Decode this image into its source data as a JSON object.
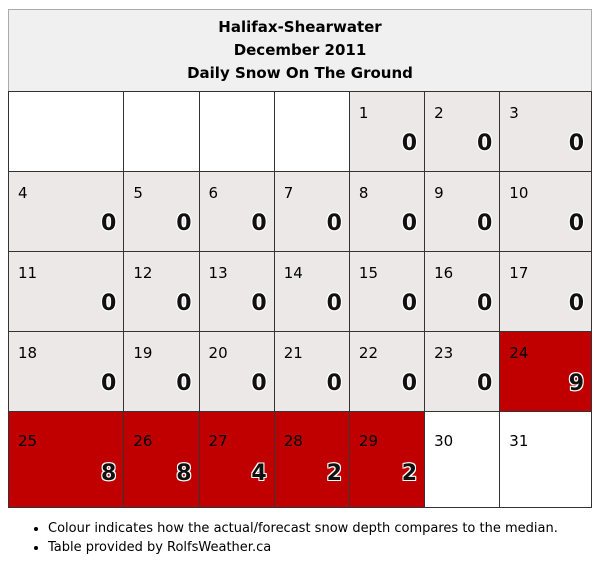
{
  "header": {
    "station": "Halifax-Shearwater",
    "period": "December 2011",
    "metric": "Daily Snow On The Ground"
  },
  "colors": {
    "normal": "#ede8e8",
    "above_median": "#c00000",
    "empty": "#ffffff"
  },
  "weeks": [
    [
      null,
      null,
      null,
      null,
      {
        "day": "1",
        "value": "0",
        "status": "normal"
      },
      {
        "day": "2",
        "value": "0",
        "status": "normal"
      },
      {
        "day": "3",
        "value": "0",
        "status": "normal"
      }
    ],
    [
      {
        "day": "4",
        "value": "0",
        "status": "normal"
      },
      {
        "day": "5",
        "value": "0",
        "status": "normal"
      },
      {
        "day": "6",
        "value": "0",
        "status": "normal"
      },
      {
        "day": "7",
        "value": "0",
        "status": "normal"
      },
      {
        "day": "8",
        "value": "0",
        "status": "normal"
      },
      {
        "day": "9",
        "value": "0",
        "status": "normal"
      },
      {
        "day": "10",
        "value": "0",
        "status": "normal"
      }
    ],
    [
      {
        "day": "11",
        "value": "0",
        "status": "normal"
      },
      {
        "day": "12",
        "value": "0",
        "status": "normal"
      },
      {
        "day": "13",
        "value": "0",
        "status": "normal"
      },
      {
        "day": "14",
        "value": "0",
        "status": "normal"
      },
      {
        "day": "15",
        "value": "0",
        "status": "normal"
      },
      {
        "day": "16",
        "value": "0",
        "status": "normal"
      },
      {
        "day": "17",
        "value": "0",
        "status": "normal"
      }
    ],
    [
      {
        "day": "18",
        "value": "0",
        "status": "normal"
      },
      {
        "day": "19",
        "value": "0",
        "status": "normal"
      },
      {
        "day": "20",
        "value": "0",
        "status": "normal"
      },
      {
        "day": "21",
        "value": "0",
        "status": "normal"
      },
      {
        "day": "22",
        "value": "0",
        "status": "normal"
      },
      {
        "day": "23",
        "value": "0",
        "status": "normal"
      },
      {
        "day": "24",
        "value": "9",
        "status": "above_median"
      }
    ],
    [
      {
        "day": "25",
        "value": "8",
        "status": "above_median"
      },
      {
        "day": "26",
        "value": "8",
        "status": "above_median"
      },
      {
        "day": "27",
        "value": "4",
        "status": "above_median"
      },
      {
        "day": "28",
        "value": "2",
        "status": "above_median"
      },
      {
        "day": "29",
        "value": "2",
        "status": "above_median"
      },
      {
        "day": "30",
        "value": null,
        "status": "empty"
      },
      {
        "day": "31",
        "value": null,
        "status": "empty"
      }
    ]
  ],
  "notes": [
    "Colour indicates how the actual/forecast snow depth compares to the median.",
    "Table provided by RolfsWeather.ca"
  ]
}
